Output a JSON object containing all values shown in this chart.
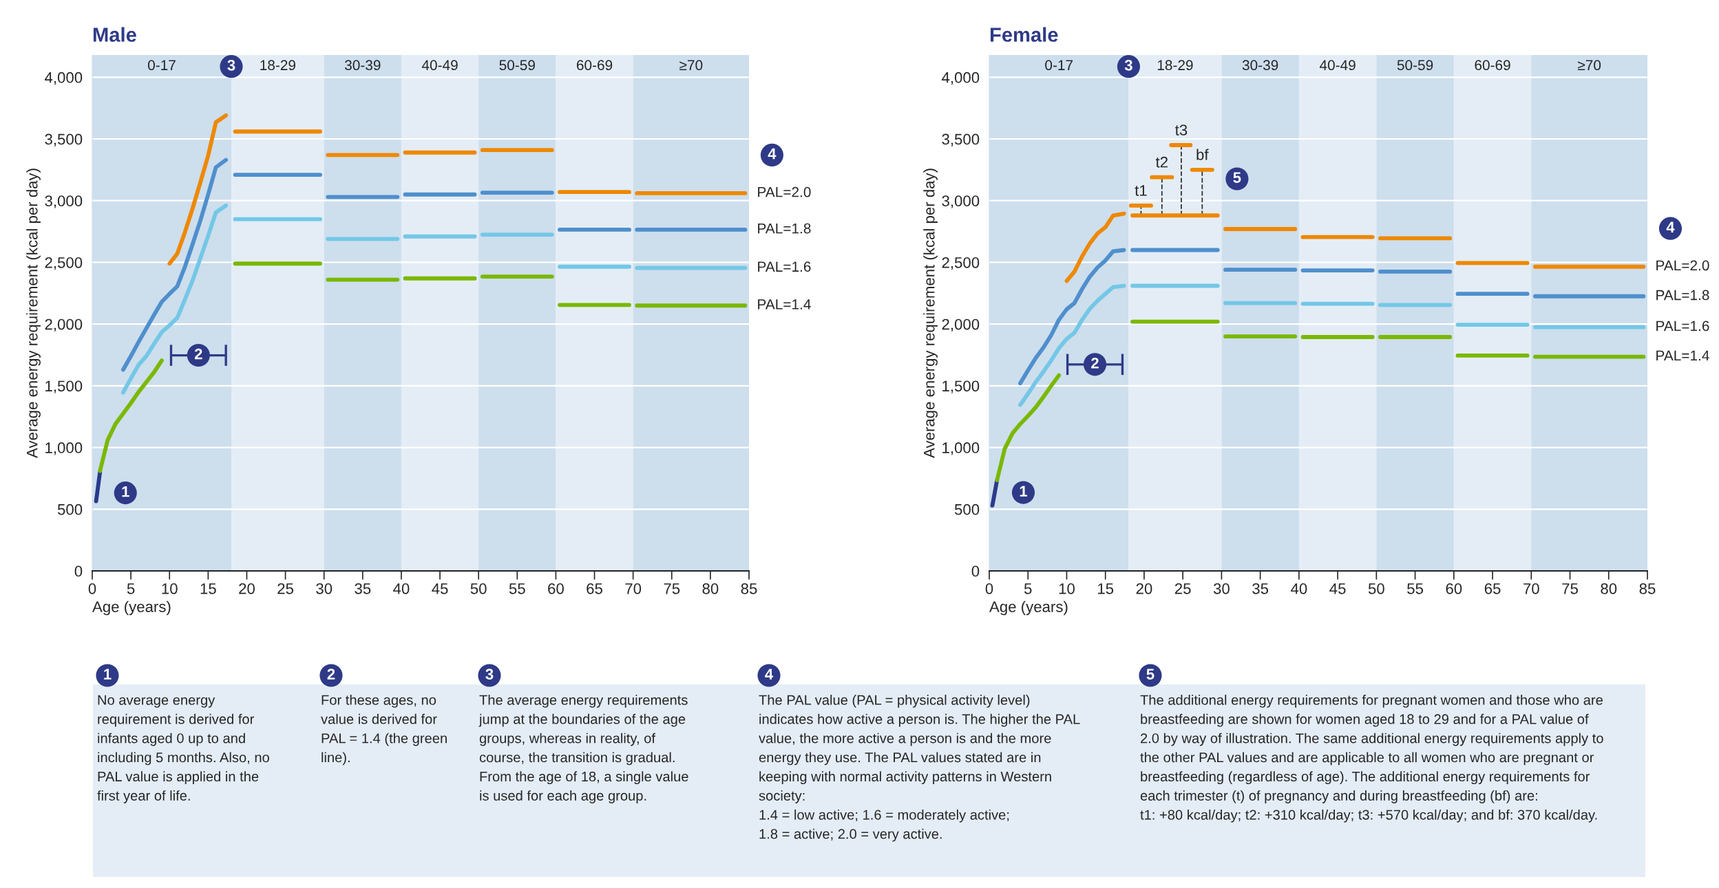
{
  "chart_data": [
    {
      "type": "line",
      "title": "Male",
      "xlabel": "Age (years)",
      "ylabel": "Average energy requirement (kcal per day)",
      "xlim": [
        0,
        85
      ],
      "xticks": [
        0,
        5,
        10,
        15,
        20,
        25,
        30,
        35,
        40,
        45,
        50,
        55,
        60,
        65,
        70,
        75,
        80,
        85
      ],
      "ylim": [
        0,
        4180
      ],
      "yticks": [
        0,
        500,
        {
          "value": 1000,
          "label": "1,000"
        },
        {
          "value": 1500,
          "label": "1,500"
        },
        {
          "value": 2000,
          "label": "2,000"
        },
        {
          "value": 2500,
          "label": "2,500"
        },
        {
          "value": 3000,
          "label": "3,000"
        },
        {
          "value": 3500,
          "label": "3,500"
        },
        {
          "value": 4000,
          "label": "4,000"
        }
      ],
      "grid": "y",
      "bands": [
        {
          "axis": "x",
          "from": 0,
          "to": 18,
          "label": "0-17",
          "color": "#cddeed"
        },
        {
          "axis": "x",
          "from": 18,
          "to": 30,
          "label": "18-29",
          "color": "#e4edf6"
        },
        {
          "axis": "x",
          "from": 30,
          "to": 40,
          "label": "30-39",
          "color": "#cddeed"
        },
        {
          "axis": "x",
          "from": 40,
          "to": 50,
          "label": "40-49",
          "color": "#e4edf6"
        },
        {
          "axis": "x",
          "from": 50,
          "to": 60,
          "label": "50-59",
          "color": "#cddeed"
        },
        {
          "axis": "x",
          "from": 60,
          "to": 70,
          "label": "60-69",
          "color": "#e4edf6"
        },
        {
          "axis": "x",
          "from": 70,
          "to": 85,
          "label": "≥70",
          "color": "#cddeed"
        }
      ],
      "series": [
        {
          "color": "#2b3a8c",
          "x": [
            0.5,
            1
          ],
          "values": [
            565,
            800
          ]
        },
        {
          "name": "PAL=2.0",
          "color": "#ee8800",
          "x": [
            10,
            11,
            12,
            13,
            14,
            15,
            16,
            17.3,
            null,
            18.5,
            29.5,
            null,
            30.5,
            39.5,
            null,
            40.5,
            49.5,
            null,
            50.5,
            59.5,
            null,
            60.5,
            69.5,
            null,
            70.5,
            84.5
          ],
          "values": [
            2490,
            2570,
            2745,
            2940,
            3150,
            3365,
            3635,
            3690,
            null,
            3560,
            3560,
            null,
            3370,
            3370,
            null,
            3390,
            3390,
            null,
            3410,
            3410,
            null,
            3070,
            3070,
            null,
            3060,
            3060
          ]
        },
        {
          "name": "PAL=1.8",
          "color": "#4f8fcc",
          "x": [
            4,
            5,
            6,
            7,
            8,
            9,
            10,
            11,
            12,
            13,
            14,
            15,
            16,
            17.3,
            null,
            18.5,
            29.5,
            null,
            30.5,
            39.5,
            null,
            40.5,
            49.5,
            null,
            50.5,
            59.5,
            null,
            60.5,
            69.5,
            null,
            70.5,
            84.5
          ],
          "values": [
            1630,
            1740,
            1855,
            1965,
            2075,
            2180,
            2245,
            2305,
            2465,
            2650,
            2840,
            3050,
            3270,
            3330,
            null,
            3210,
            3210,
            null,
            3030,
            3030,
            null,
            3050,
            3050,
            null,
            3065,
            3065,
            null,
            2765,
            2765,
            null,
            2765,
            2765
          ]
        },
        {
          "name": "PAL=1.6",
          "color": "#74c7e6",
          "x": [
            4,
            5,
            6,
            7,
            8,
            9,
            10,
            11,
            12,
            13,
            14,
            15,
            16,
            17.3,
            null,
            18.5,
            29.5,
            null,
            30.5,
            39.5,
            null,
            40.5,
            49.5,
            null,
            50.5,
            59.5,
            null,
            60.5,
            69.5,
            null,
            70.5,
            84.5
          ],
          "values": [
            1445,
            1560,
            1670,
            1740,
            1840,
            1935,
            1990,
            2050,
            2200,
            2355,
            2535,
            2715,
            2905,
            2960,
            null,
            2850,
            2850,
            null,
            2690,
            2690,
            null,
            2710,
            2710,
            null,
            2725,
            2725,
            null,
            2465,
            2465,
            null,
            2455,
            2455
          ]
        },
        {
          "name": "PAL=1.4",
          "color": "#7ab800",
          "x": [
            1,
            2,
            3,
            4,
            5,
            6,
            7,
            8,
            9,
            null,
            18.5,
            29.5,
            null,
            30.5,
            39.5,
            null,
            40.5,
            49.5,
            null,
            50.5,
            59.5,
            null,
            60.5,
            69.5,
            null,
            70.5,
            84.5
          ],
          "values": [
            810,
            1060,
            1190,
            1275,
            1360,
            1450,
            1530,
            1610,
            1705,
            null,
            2490,
            2490,
            null,
            2360,
            2360,
            null,
            2370,
            2370,
            null,
            2385,
            2385,
            null,
            2155,
            2155,
            null,
            2150,
            2150
          ]
        },
        {
          "type": "scatter",
          "color": "#2e3a87",
          "x": [
            13.75
          ],
          "values": [
            1747
          ],
          "xerrors": [
            [
              10.2,
              17.3
            ]
          ]
        }
      ],
      "annotations": [
        {
          "text": "1",
          "x": 4.3,
          "y": 632
        },
        {
          "text": "2",
          "x": 13.75,
          "y": 1747
        },
        {
          "text": "3",
          "x": 18,
          "y": 4087
        },
        "4"
      ]
    },
    {
      "type": "line",
      "title": "Female",
      "xlabel": "Age (years)",
      "ylabel": "Average energy requirement (kcal per day)",
      "xlim": [
        0,
        85
      ],
      "xticks": [
        0,
        5,
        10,
        15,
        20,
        25,
        30,
        35,
        40,
        45,
        50,
        55,
        60,
        65,
        70,
        75,
        80,
        85
      ],
      "ylim": [
        0,
        4180
      ],
      "yticks": [
        0,
        500,
        {
          "value": 1000,
          "label": "1,000"
        },
        {
          "value": 1500,
          "label": "1,500"
        },
        {
          "value": 2000,
          "label": "2,000"
        },
        {
          "value": 2500,
          "label": "2,500"
        },
        {
          "value": 3000,
          "label": "3,000"
        },
        {
          "value": 3500,
          "label": "3,500"
        },
        {
          "value": 4000,
          "label": "4,000"
        }
      ],
      "grid": "y",
      "bands": [
        {
          "axis": "x",
          "from": 0,
          "to": 18,
          "label": "0-17",
          "color": "#cddeed"
        },
        {
          "axis": "x",
          "from": 18,
          "to": 30,
          "label": "18-29",
          "color": "#e4edf6"
        },
        {
          "axis": "x",
          "from": 30,
          "to": 40,
          "label": "30-39",
          "color": "#cddeed"
        },
        {
          "axis": "x",
          "from": 40,
          "to": 50,
          "label": "40-49",
          "color": "#e4edf6"
        },
        {
          "axis": "x",
          "from": 50,
          "to": 60,
          "label": "50-59",
          "color": "#cddeed"
        },
        {
          "axis": "x",
          "from": 60,
          "to": 70,
          "label": "60-69",
          "color": "#e4edf6"
        },
        {
          "axis": "x",
          "from": 70,
          "to": 85,
          "label": "≥70",
          "color": "#cddeed"
        }
      ],
      "series": [
        {
          "color": "#2b3a8c",
          "x": [
            0.4,
            1
          ],
          "values": [
            530,
            735
          ]
        },
        {
          "name": "PAL=2.0",
          "color": "#ee8800",
          "x": [
            10,
            11,
            12,
            13,
            14,
            15,
            16,
            17.4,
            null,
            18.5,
            29.5,
            null,
            30.5,
            39.5,
            null,
            40.5,
            49.5,
            null,
            50.5,
            59.5,
            null,
            60.5,
            69.5,
            null,
            70.5,
            84.5
          ],
          "values": [
            2350,
            2425,
            2550,
            2655,
            2735,
            2785,
            2880,
            2895,
            null,
            2880,
            2880,
            null,
            2770,
            2770,
            null,
            2705,
            2705,
            null,
            2695,
            2695,
            null,
            2495,
            2495,
            null,
            2465,
            2465
          ]
        },
        {
          "name": "PAL=1.8",
          "color": "#4f8fcc",
          "x": [
            4,
            5,
            6,
            7,
            8,
            9,
            10,
            11,
            12,
            13,
            14,
            15,
            16,
            17.4,
            null,
            18.5,
            29.5,
            null,
            30.5,
            39.5,
            null,
            40.5,
            49.5,
            null,
            50.5,
            59.5,
            null,
            60.5,
            69.5,
            null,
            70.5,
            84.5
          ],
          "values": [
            1520,
            1625,
            1725,
            1810,
            1910,
            2035,
            2120,
            2170,
            2285,
            2385,
            2460,
            2515,
            2590,
            2600,
            null,
            2600,
            2600,
            null,
            2440,
            2440,
            null,
            2435,
            2435,
            null,
            2425,
            2425,
            null,
            2245,
            2245,
            null,
            2225,
            2225
          ]
        },
        {
          "name": "PAL=1.6",
          "color": "#74c7e6",
          "x": [
            4,
            5,
            6,
            7,
            8,
            9,
            10,
            11,
            12,
            13,
            14,
            15,
            16,
            17.4,
            null,
            18.5,
            29.5,
            null,
            30.5,
            39.5,
            null,
            40.5,
            49.5,
            null,
            50.5,
            59.5,
            null,
            60.5,
            69.5,
            null,
            70.5,
            84.5
          ],
          "values": [
            1345,
            1435,
            1530,
            1615,
            1705,
            1805,
            1880,
            1930,
            2035,
            2125,
            2190,
            2245,
            2300,
            2310,
            null,
            2310,
            2310,
            null,
            2170,
            2170,
            null,
            2165,
            2165,
            null,
            2155,
            2155,
            null,
            1995,
            1995,
            null,
            1975,
            1975
          ]
        },
        {
          "name": "PAL=1.4",
          "color": "#7ab800",
          "x": [
            1,
            2,
            3,
            4,
            5,
            6,
            7,
            8,
            9,
            null,
            18.5,
            29.5,
            null,
            30.5,
            39.5,
            null,
            40.5,
            49.5,
            null,
            50.5,
            59.5,
            null,
            60.5,
            69.5,
            null,
            70.5,
            84.5
          ],
          "values": [
            735,
            990,
            1115,
            1190,
            1255,
            1325,
            1410,
            1500,
            1585,
            null,
            2020,
            2020,
            null,
            1900,
            1900,
            null,
            1895,
            1895,
            null,
            1895,
            1895,
            null,
            1745,
            1745,
            null,
            1735,
            1735
          ]
        },
        {
          "color": "#ee8800",
          "x": [
            18.3,
            20.9,
            null,
            21,
            23.6,
            null,
            23.5,
            26,
            null,
            26.2,
            28.8
          ],
          "values": [
            2960,
            2960,
            null,
            3190,
            3190,
            null,
            3450,
            3450,
            null,
            3250,
            3250
          ]
        },
        {
          "color": "#333333",
          "line_style": "dashed",
          "x": [
            19.6,
            19.6,
            null,
            22.3,
            22.3,
            null,
            24.8,
            24.8,
            null,
            27.5,
            27.5
          ],
          "values": [
            2880,
            2960,
            null,
            2880,
            3190,
            null,
            2880,
            3450,
            null,
            2880,
            3250
          ],
          "value_labels": [
            null,
            "t1",
            null,
            null,
            "t2",
            null,
            null,
            "t3",
            null,
            null,
            "bf"
          ]
        },
        {
          "type": "scatter",
          "color": "#2e3a87",
          "x": [
            13.65
          ],
          "values": [
            1673
          ],
          "xerrors": [
            [
              10.1,
              17.2
            ]
          ]
        }
      ],
      "annotations": [
        {
          "text": "1",
          "x": 4.4,
          "y": 635
        },
        {
          "text": "2",
          "x": 13.65,
          "y": 1673
        },
        {
          "text": "3",
          "x": 18,
          "y": 4087
        },
        {
          "text": "5",
          "x": 32,
          "y": 3177
        },
        "4"
      ]
    },
    {
      "type": "other",
      "annotations": [
        "1",
        "No average energy\nrequirement is derived for\ninfants aged 0 up to and\nincluding 5 months. Also, no\nPAL value is applied in the\nfirst year of life.",
        "2",
        "For these ages, no\nvalue is derived for\nPAL = 1.4 (the green\nline).",
        "3",
        "The average energy requirements\njump at the boundaries of the age\ngroups, whereas in reality, of\ncourse, the transition is gradual.\nFrom the age of 18, a single value\nis used for each age group.",
        "4",
        "The PAL value (PAL = physical activity level)\nindicates how active a person is. The higher the PAL\nvalue, the more active a person is and the more\nenergy they use. The PAL values stated are in\nkeeping with normal activity patterns in Western\nsociety:\n1.4 = low active; 1.6 = moderately active;\n1.8 = active; 2.0 = very active.",
        "5",
        "The additional energy requirements for pregnant women and those who are\nbreastfeeding are shown for women aged 18 to 29 and for a PAL value of\n2.0 by way of illustration. The same additional energy requirements apply to\nthe other PAL values and are applicable to all women who are pregnant or\nbreastfeeding (regardless of age). The additional energy requirements for\neach trimester (t) of pregnancy and during breastfeeding (bf) are:\nt1: +80 kcal/day; t2: +310 kcal/day; t3: +570 kcal/day; and bf: 370 kcal/day."
      ]
    }
  ]
}
